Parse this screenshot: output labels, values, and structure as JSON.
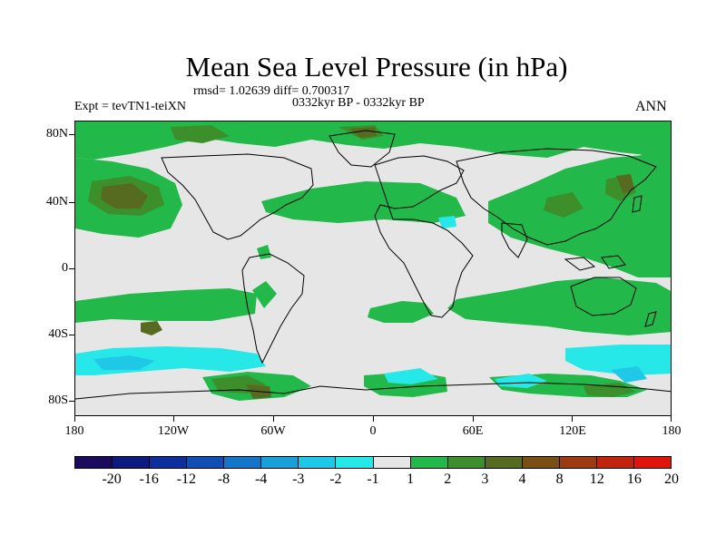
{
  "figure": {
    "title": "Mean Sea Level Pressure (in hPa)",
    "stats": "rmsd= 1.02639  diff= 0.700317",
    "period": "0332kyr BP - 0332kyr BP",
    "experiment": "Expt = tevTN1-teiXN",
    "season": "ANN"
  },
  "axes": {
    "lat_labels": [
      "80N",
      "40N",
      "0",
      "40S",
      "80S"
    ],
    "lon_labels": [
      "180",
      "120W",
      "60W",
      "0",
      "60E",
      "120E",
      "180"
    ]
  },
  "colorbar": {
    "labels": [
      "-20",
      "-16",
      "-12",
      "-8",
      "-4",
      "-3",
      "-2",
      "-1",
      "1",
      "2",
      "3",
      "4",
      "8",
      "12",
      "16",
      "20"
    ],
    "colors": [
      "#1c0a5e",
      "#0d1a80",
      "#0d2f9e",
      "#0f4fb4",
      "#1476c8",
      "#1aa0d8",
      "#1fc8e6",
      "#26e8e8",
      "#e6e6e6",
      "#22b84a",
      "#3d8f2c",
      "#566b1f",
      "#7a4f14",
      "#9e3a10",
      "#c0240c",
      "#e0140a"
    ]
  },
  "palette": {
    "background": "#e6e6e6",
    "positive_1_2": "#22b84a",
    "positive_2_3": "#3d8f2c",
    "positive_3_4": "#566b1f",
    "negative_1_2": "#26e8e8",
    "negative_2_3": "#1fc8e6"
  }
}
